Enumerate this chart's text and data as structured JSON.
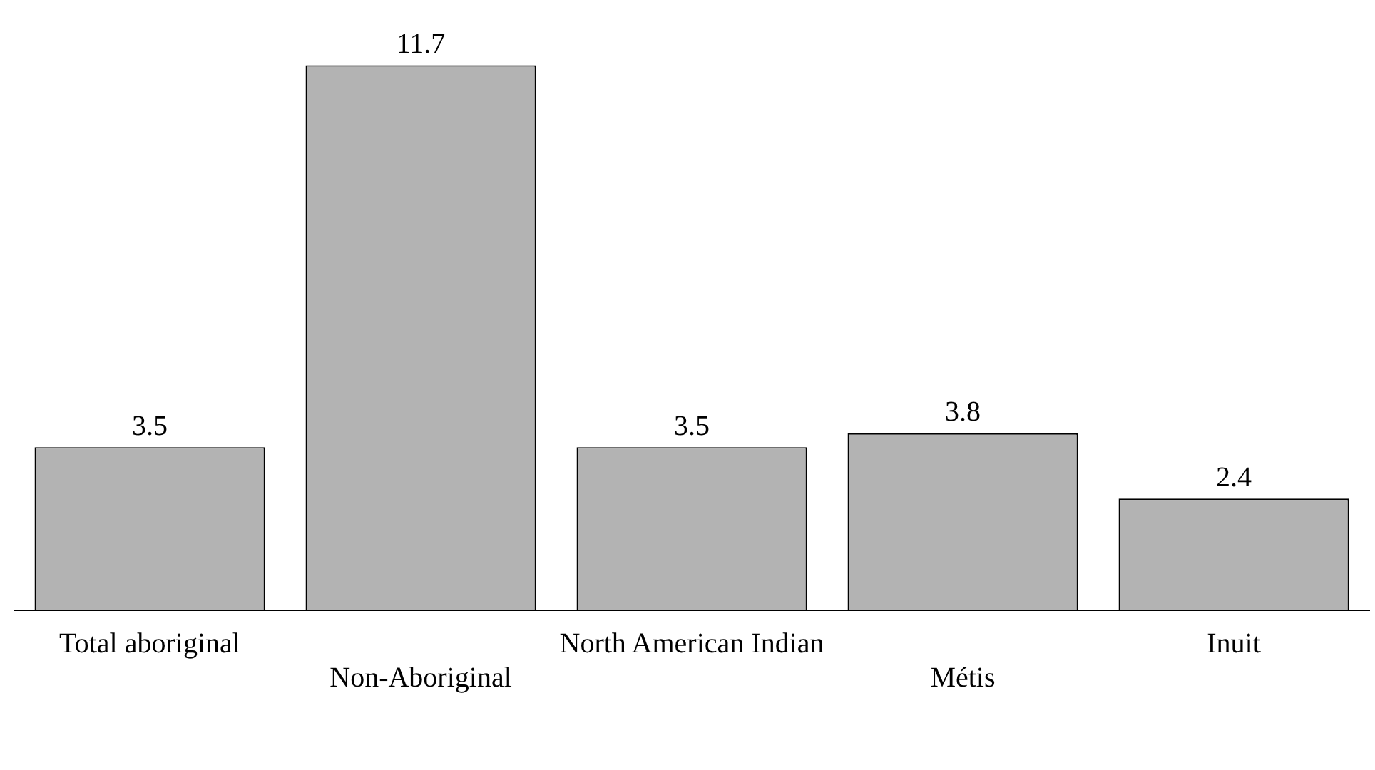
{
  "chart_data": {
    "type": "bar",
    "categories": [
      "Total aboriginal",
      "Non-Aboriginal",
      "North American Indian",
      "Métis",
      "Inuit"
    ],
    "values": [
      3.5,
      11.7,
      3.5,
      3.8,
      2.4
    ],
    "color": "#b3b3b3",
    "data_labels": true,
    "grid": false,
    "legend": false
  }
}
